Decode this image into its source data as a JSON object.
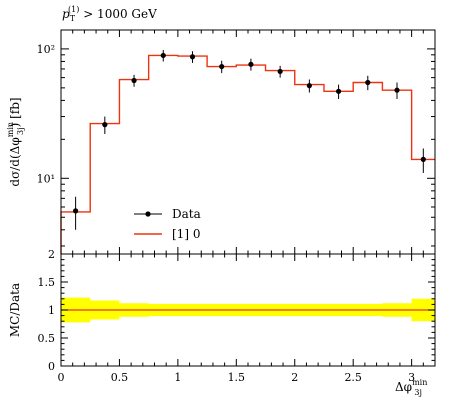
{
  "chart_data": {
    "type": "line",
    "title": "p_T^(1) > 1000 GeV",
    "title_parts": {
      "p": "p",
      "sub": "T",
      "sup": "(1)",
      "rest": " > 1000 GeV"
    },
    "main_panel": {
      "ylabel": "dσ/d(Δφ_3j^min) [fb]",
      "ylabel_parts": {
        "pre": "dσ/d(Δφ",
        "sup": "min",
        "sub": "3j",
        "post": ") [fb]"
      },
      "yscale": "log",
      "ylim": [
        2.6,
        140
      ],
      "y_ticks": [
        {
          "value": 10,
          "label": "10¹"
        },
        {
          "value": 100,
          "label": "10²"
        }
      ],
      "legend_position": "lower-left",
      "series": [
        {
          "name": "Data",
          "kind": "points",
          "color": "#000000",
          "x": [
            0.125,
            0.375,
            0.625,
            0.875,
            1.125,
            1.375,
            1.625,
            1.875,
            2.125,
            2.375,
            2.625,
            2.875,
            3.1
          ],
          "y": [
            5.6,
            26,
            57,
            89,
            87,
            73,
            76,
            67,
            52,
            47,
            55,
            48,
            14
          ],
          "y_err": [
            1.6,
            4,
            6,
            9,
            9,
            8,
            8,
            7,
            6,
            6,
            7,
            7,
            3
          ]
        },
        {
          "name": "[1] 0",
          "kind": "step",
          "color": "#ee3311",
          "edges": [
            0,
            0.25,
            0.5,
            0.75,
            1.0,
            1.25,
            1.5,
            1.75,
            2.0,
            2.25,
            2.5,
            2.75,
            3.0,
            3.2
          ],
          "values": [
            5.5,
            26.5,
            58,
            89,
            88,
            73,
            75,
            68,
            53,
            47,
            55,
            48,
            14
          ]
        }
      ]
    },
    "ratio_panel": {
      "ylabel": "MC/Data",
      "ylim": [
        0,
        2
      ],
      "y_ticks": [
        0,
        0.5,
        1,
        1.5,
        2
      ],
      "y_tick_labels": [
        "0",
        "0.5",
        "1",
        "1.5",
        "2"
      ],
      "band_color": "#ffff00",
      "band": {
        "edges": [
          0,
          0.25,
          0.5,
          0.75,
          1.0,
          1.25,
          1.5,
          1.75,
          2.0,
          2.25,
          2.5,
          2.75,
          3.0,
          3.2
        ],
        "low": [
          0.78,
          0.83,
          0.88,
          0.89,
          0.89,
          0.89,
          0.89,
          0.89,
          0.89,
          0.89,
          0.89,
          0.88,
          0.8
        ],
        "high": [
          1.22,
          1.17,
          1.12,
          1.11,
          1.11,
          1.11,
          1.11,
          1.11,
          1.11,
          1.11,
          1.11,
          1.12,
          1.2
        ]
      },
      "ratio_values": [
        1,
        1,
        1,
        1,
        1,
        1,
        1,
        1,
        1,
        1,
        1,
        1,
        1
      ]
    },
    "xlabel": "Δφ_3j^min",
    "xlabel_parts": {
      "pre": "Δφ",
      "sup": "min",
      "sub": "3j"
    },
    "xlim": [
      0,
      3.2
    ],
    "x_ticks": [
      0,
      0.5,
      1,
      1.5,
      2,
      2.5,
      3
    ],
    "x_tick_labels": [
      "0",
      "0.5",
      "1",
      "1.5",
      "2",
      "2.5",
      "3"
    ]
  }
}
